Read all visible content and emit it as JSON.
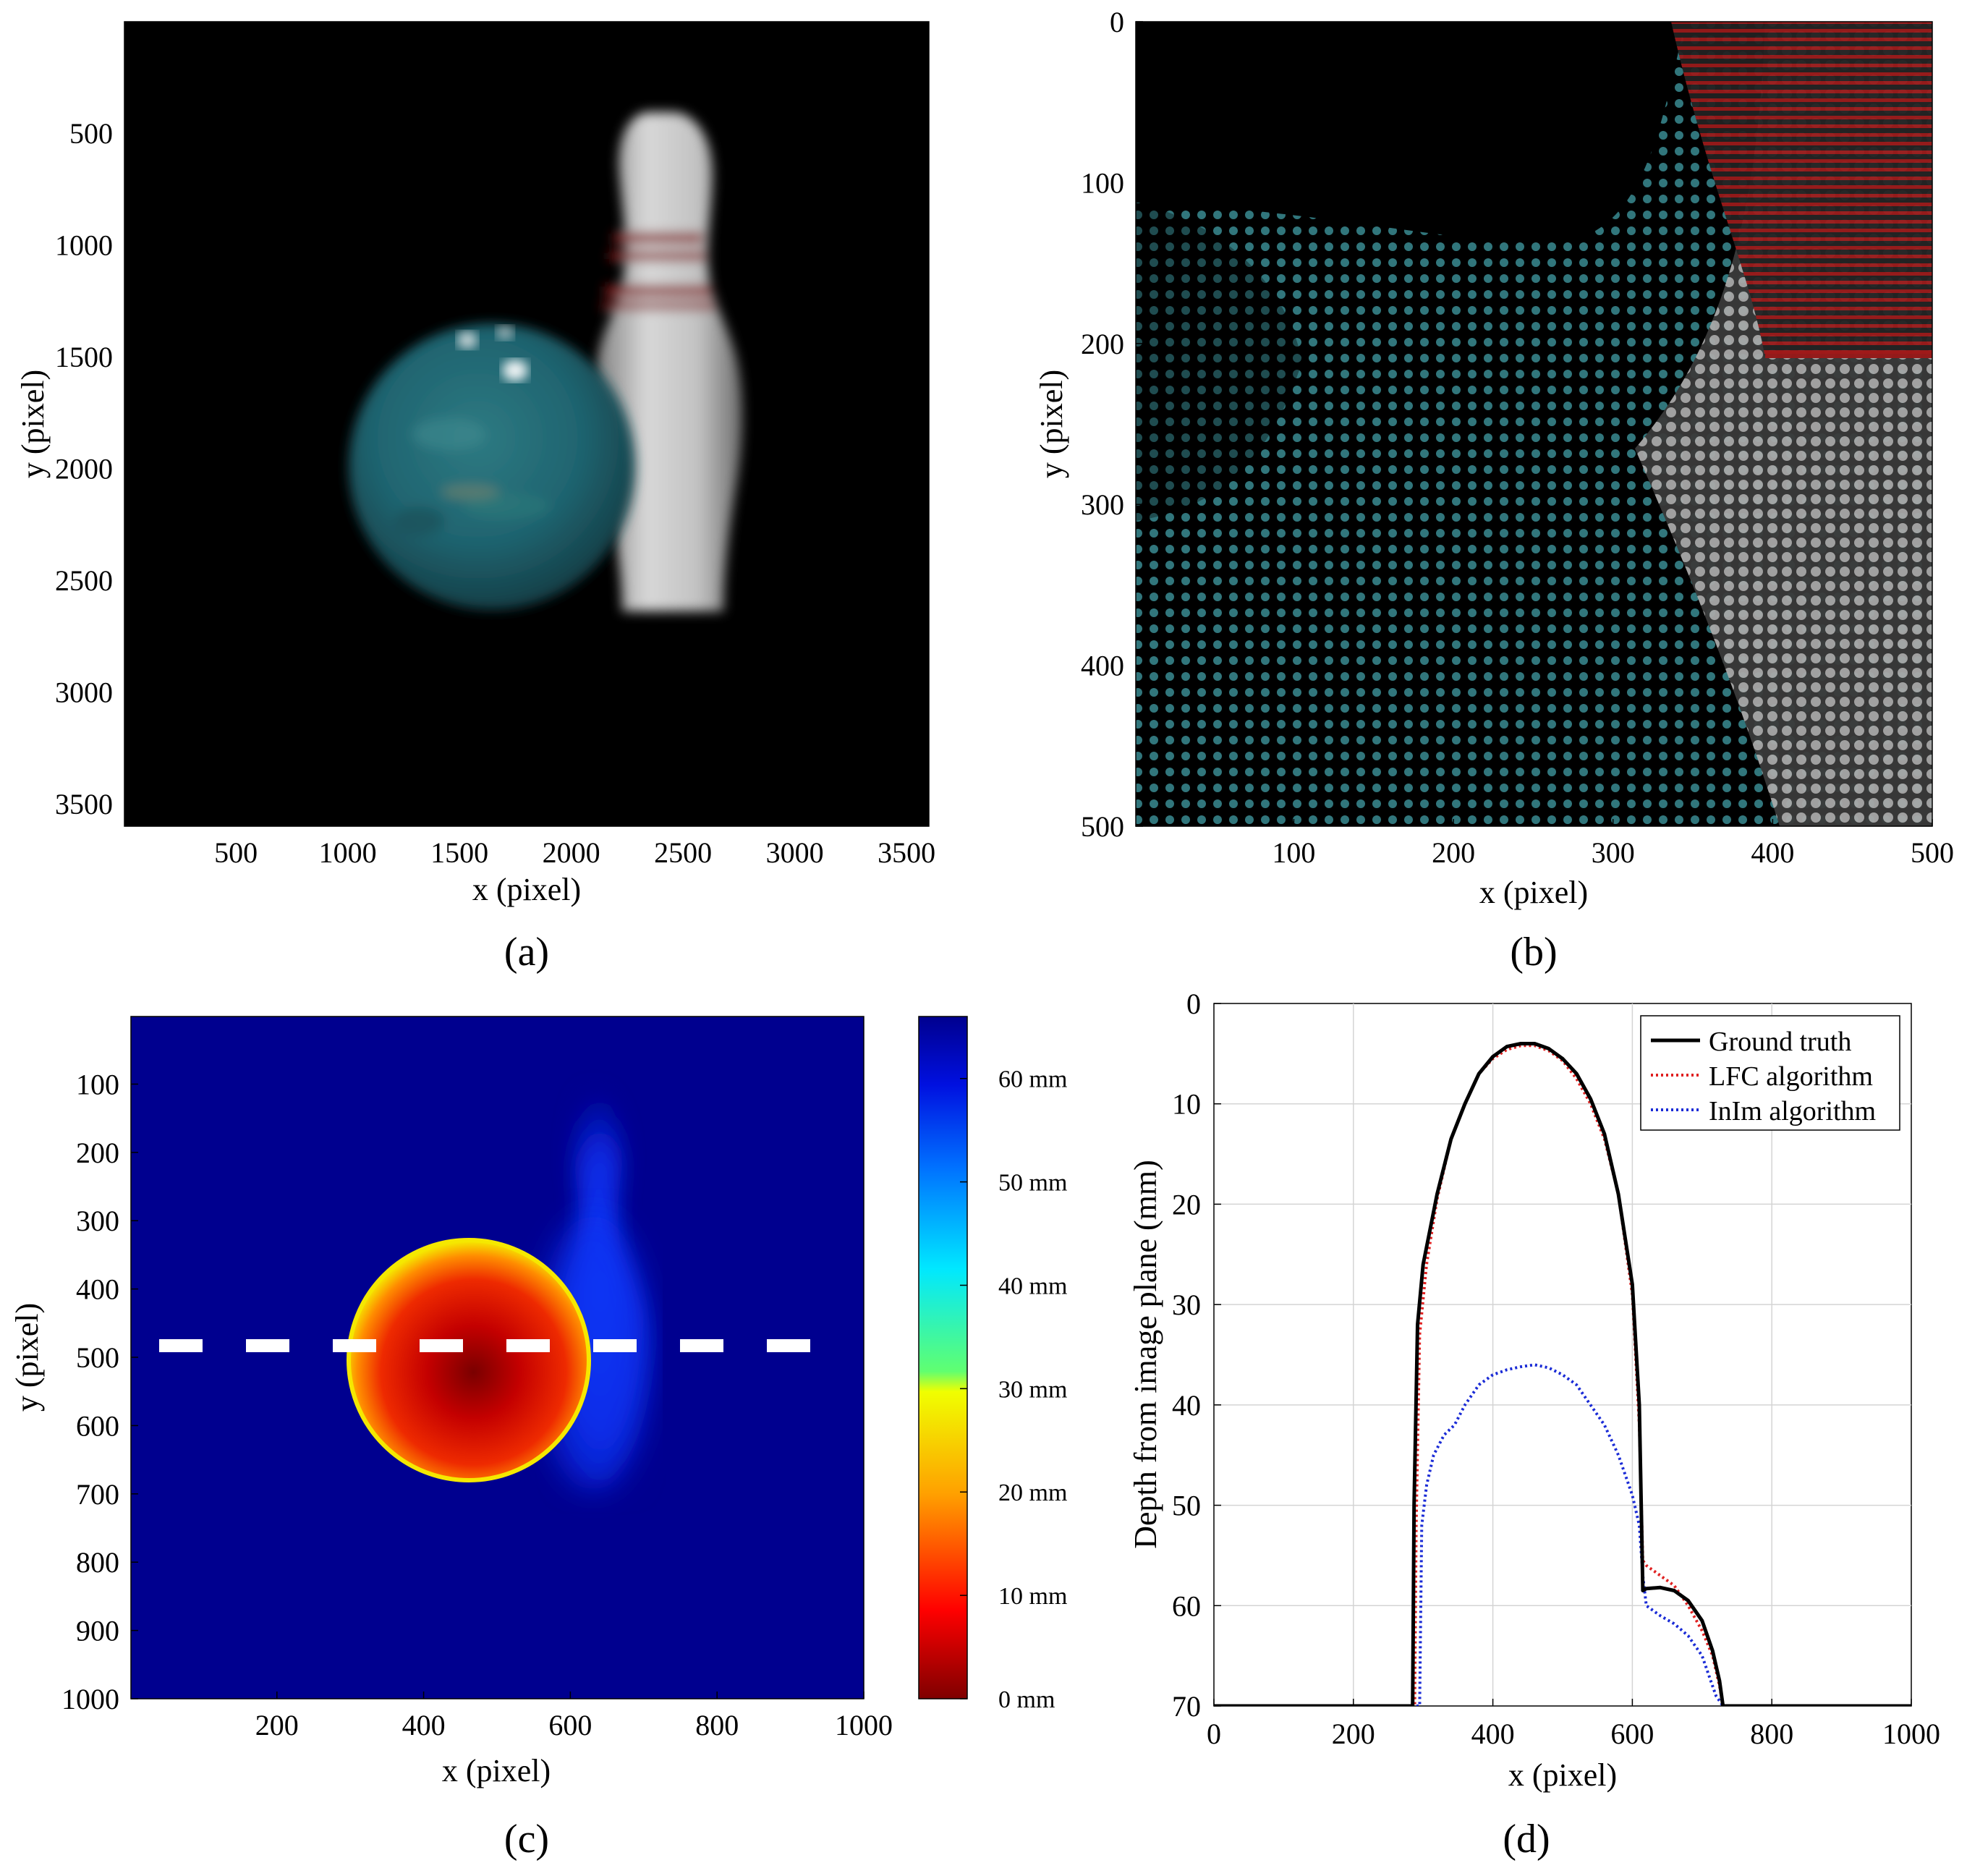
{
  "colors": {
    "ground_truth": "#000000",
    "lfc": "#e02020",
    "inim": "#1a2bd6",
    "depth_background": "#00008f",
    "dash_line": "#ffffff",
    "ball": "#1f6b74",
    "pin": "#bdbdbd",
    "stripe": "#a01010"
  },
  "chart_data": [
    {
      "id": "a",
      "type": "image",
      "caption": "(a)",
      "xlabel": "x (pixel)",
      "ylabel": "y (pixel)",
      "xlim": [
        1,
        3600
      ],
      "ylim": [
        1,
        3600
      ],
      "xticks": [
        500,
        1000,
        1500,
        2000,
        2500,
        3000,
        3500
      ],
      "yticks": [
        500,
        1000,
        1500,
        2000,
        2500,
        3000,
        3500
      ],
      "content": [
        "bowling-ball",
        "bowling-pin"
      ]
    },
    {
      "id": "b",
      "type": "image",
      "caption": "(b)",
      "xlabel": "x (pixel)",
      "ylabel": "y (pixel)",
      "xlim": [
        1,
        500
      ],
      "ylim": [
        0,
        500
      ],
      "xticks": [
        100,
        200,
        300,
        400,
        500
      ],
      "yticks": [
        0,
        100,
        200,
        300,
        400,
        500
      ],
      "content": [
        "ball-texture",
        "pin-texture",
        "red-stripe"
      ]
    },
    {
      "id": "c",
      "type": "heatmap",
      "caption": "(c)",
      "xlabel": "x (pixel)",
      "ylabel": "y (pixel)",
      "xlim": [
        1,
        1000
      ],
      "ylim": [
        1,
        1000
      ],
      "xticks": [
        200,
        400,
        600,
        800,
        1000
      ],
      "yticks": [
        100,
        200,
        300,
        400,
        500,
        600,
        700,
        800,
        900,
        1000
      ],
      "colorbar": {
        "labels": [
          "0 mm",
          "10 mm",
          "20 mm",
          "30 mm",
          "40 mm",
          "50 mm",
          "60 mm"
        ],
        "values": [
          0,
          10,
          20,
          30,
          40,
          50,
          60
        ],
        "range": [
          0,
          66
        ]
      },
      "regions": [
        {
          "name": "ball",
          "center": [
            455,
            505
          ],
          "radius": 165,
          "depth_center": 4,
          "depth_edge": 28
        },
        {
          "name": "pin",
          "depth": 55
        }
      ],
      "background_depth": 66,
      "profile_line_y": 480
    },
    {
      "id": "d",
      "type": "line",
      "caption": "(d)",
      "xlabel": "x (pixel)",
      "ylabel": "Depth from image plane (mm)",
      "xlim": [
        0,
        1000
      ],
      "ylim": [
        0,
        70
      ],
      "y_reversed": true,
      "grid": true,
      "xticks": [
        0,
        200,
        400,
        600,
        800,
        1000
      ],
      "yticks": [
        0,
        10,
        20,
        30,
        40,
        50,
        60,
        70
      ],
      "legend_position": "top-right",
      "series": [
        {
          "name": "Ground truth",
          "style": "solid",
          "x": [
            0,
            285,
            287,
            292,
            300,
            320,
            340,
            360,
            380,
            400,
            420,
            440,
            460,
            480,
            500,
            520,
            540,
            560,
            580,
            600,
            610,
            615,
            620,
            640,
            660,
            680,
            700,
            715,
            725,
            730,
            1000
          ],
          "y": [
            70,
            70,
            50,
            32,
            26,
            19,
            13.5,
            10,
            7,
            5.3,
            4.3,
            4,
            4,
            4.5,
            5.5,
            7,
            9.5,
            13,
            19,
            28,
            40,
            58.5,
            58.3,
            58.2,
            58.5,
            59.5,
            61.5,
            64.5,
            67.5,
            70,
            70
          ]
        },
        {
          "name": "LFC algorithm",
          "style": "dotted",
          "x": [
            0,
            288,
            290,
            295,
            305,
            320,
            340,
            360,
            380,
            400,
            420,
            440,
            460,
            480,
            500,
            520,
            540,
            560,
            580,
            600,
            610,
            615,
            620,
            640,
            660,
            680,
            700,
            715,
            725,
            730,
            1000
          ],
          "y": [
            70,
            70,
            52,
            33,
            26,
            19.5,
            13.5,
            10,
            7,
            5.5,
            4.6,
            4.2,
            4.2,
            4.7,
            5.7,
            7.5,
            10,
            13.5,
            19,
            29,
            42,
            55.5,
            56,
            57,
            58,
            60,
            62.5,
            65,
            68,
            70,
            70
          ]
        },
        {
          "name": "InIm algorithm",
          "style": "dotted",
          "x": [
            0,
            295,
            298,
            305,
            315,
            330,
            345,
            360,
            380,
            400,
            420,
            440,
            460,
            480,
            500,
            520,
            540,
            560,
            580,
            600,
            610,
            615,
            620,
            640,
            660,
            680,
            700,
            710,
            720,
            730,
            1000
          ],
          "y": [
            70,
            70,
            52,
            48,
            45,
            43,
            42,
            40,
            38,
            37,
            36.5,
            36.2,
            36,
            36.3,
            37,
            38,
            40,
            42,
            45,
            49,
            52,
            57,
            60,
            61,
            61.8,
            63,
            65,
            67,
            69,
            70,
            70
          ]
        }
      ]
    }
  ]
}
